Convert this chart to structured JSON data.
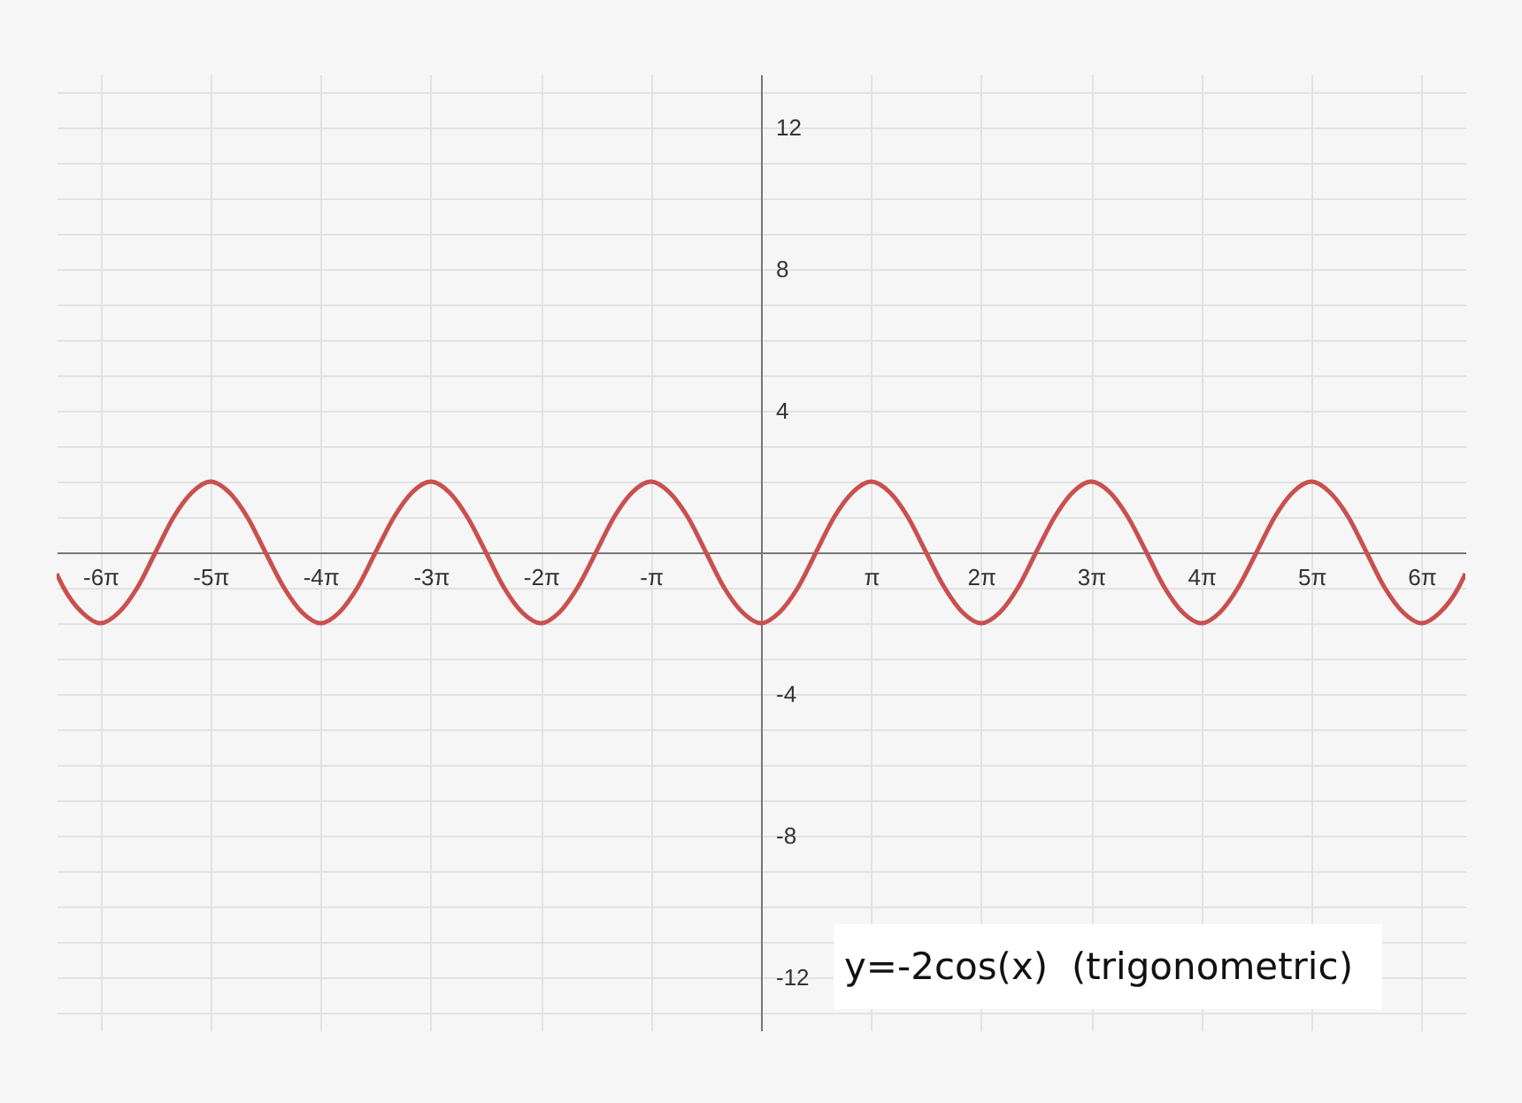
{
  "chart_data": {
    "type": "line",
    "annotations": [
      "y=-2cos(x)  (trigonometric)"
    ],
    "x": [
      -20.1,
      -19.9,
      -19.37,
      -18.85,
      -18.33,
      -17.8,
      -17.28,
      -16.76,
      -16.23,
      -15.71,
      -15.18,
      -14.66,
      -14.14,
      -13.61,
      -13.09,
      -12.57,
      -12.04,
      -11.52,
      -11,
      -10.47,
      -9.95,
      -9.42,
      -8.9,
      -8.38,
      -7.85,
      -7.33,
      -6.81,
      -6.28,
      -5.76,
      -5.24,
      -4.71,
      -4.19,
      -3.67,
      -3.14,
      -2.62,
      -2.09,
      -1.57,
      -1.05,
      -0.52,
      0,
      0.52,
      1.05,
      1.57,
      2.09,
      2.62,
      3.14,
      3.67,
      4.19,
      4.71,
      5.24,
      5.76,
      6.28,
      6.81,
      7.33,
      7.85,
      8.38,
      8.9,
      9.42,
      9.95,
      10.47,
      11,
      11.52,
      12.04,
      12.57,
      13.09,
      13.61,
      14.14,
      14.66,
      15.18,
      15.71,
      16.23,
      16.76,
      17.28,
      17.8,
      18.33,
      18.85,
      19.37,
      19.9,
      20.1
    ],
    "series": [
      {
        "color": "#c9504f",
        "values": [
          -0.6,
          -1,
          -1.7,
          -2,
          -1.7,
          -1,
          0,
          1,
          1.7,
          2,
          1.7,
          1,
          0,
          -1,
          -1.7,
          -2,
          -1.7,
          -1,
          0,
          1,
          1.7,
          2,
          1.7,
          1,
          0,
          -1,
          -1.7,
          -2,
          -1.7,
          -1,
          0,
          1,
          1.7,
          2,
          1.7,
          1,
          0,
          -1,
          -1.7,
          -2,
          -1.7,
          -1,
          0,
          1,
          1.7,
          2,
          1.7,
          1,
          0,
          -1,
          -1.7,
          -2,
          -1.7,
          -1,
          0,
          1,
          1.7,
          2,
          1.7,
          1,
          0,
          -1,
          -1.7,
          -2,
          -1.7,
          -1,
          0,
          1,
          1.7,
          2,
          1.7,
          1,
          0,
          -1,
          -1.7,
          -2,
          -1.7,
          -1,
          -0.6
        ]
      }
    ],
    "xlim": [
      -20.1,
      20.1
    ],
    "ylim": [
      -13.5,
      13.5
    ],
    "xticks": [
      {
        "value": -18.85,
        "label": "-6π"
      },
      {
        "value": -15.71,
        "label": "-5π"
      },
      {
        "value": -12.57,
        "label": "-4π"
      },
      {
        "value": -9.42,
        "label": "-3π"
      },
      {
        "value": -6.28,
        "label": "-2π"
      },
      {
        "value": -3.14,
        "label": "-π"
      },
      {
        "value": 0,
        "label": null
      },
      {
        "value": 3.14,
        "label": "π"
      },
      {
        "value": 6.28,
        "label": "2π"
      },
      {
        "value": 9.42,
        "label": "3π"
      },
      {
        "value": 12.57,
        "label": "4π"
      },
      {
        "value": 15.71,
        "label": "5π"
      },
      {
        "value": 18.85,
        "label": "6π"
      }
    ],
    "yticks": [
      {
        "value": -13,
        "label": null
      },
      -12,
      {
        "value": -11,
        "label": null
      },
      {
        "value": -10,
        "label": null
      },
      {
        "value": -9,
        "label": null
      },
      -8,
      {
        "value": -7,
        "label": null
      },
      {
        "value": -6,
        "label": null
      },
      {
        "value": -5,
        "label": null
      },
      -4,
      {
        "value": -3,
        "label": null
      },
      {
        "value": -2,
        "label": null
      },
      {
        "value": -1,
        "label": null
      },
      {
        "value": 0,
        "label": null
      },
      {
        "value": 1,
        "label": null
      },
      {
        "value": 2,
        "label": null
      },
      {
        "value": 3,
        "label": null
      },
      4,
      {
        "value": 5,
        "label": null
      },
      {
        "value": 6,
        "label": null
      },
      {
        "value": 7,
        "label": null
      },
      8,
      {
        "value": 9,
        "label": null
      },
      {
        "value": 10,
        "label": null
      },
      {
        "value": 11,
        "label": null
      },
      12,
      {
        "value": 13,
        "label": null
      }
    ],
    "grid": true
  }
}
